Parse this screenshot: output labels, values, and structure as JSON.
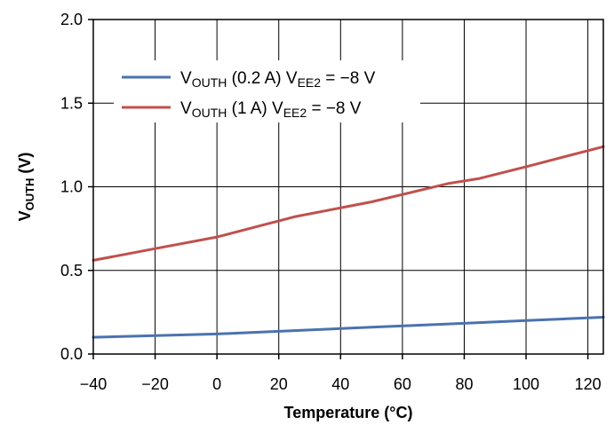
{
  "chart_data": {
    "type": "line",
    "xlabel": "Temperature (°C)",
    "ylabel": {
      "main": "V",
      "sub": "OUTH",
      "unit": " (V)"
    },
    "xlim": [
      -40,
      125
    ],
    "ylim": [
      0,
      2.0
    ],
    "xticks": [
      -40,
      -20,
      0,
      20,
      40,
      60,
      80,
      100,
      120
    ],
    "xtick_labels": [
      "−40",
      "−20",
      "0",
      "20",
      "40",
      "60",
      "80",
      "100",
      "120"
    ],
    "yticks": [
      0,
      0.5,
      1.0,
      1.5,
      2.0
    ],
    "ytick_labels": [
      "0.0",
      "0.5",
      "1.0",
      "1.5",
      "2.0"
    ],
    "grid": true,
    "legend_position": "top-left",
    "series": [
      {
        "name": "VOUTH (0.2 A) VEE2 = −8 V",
        "label_parts": {
          "v1": "V",
          "s1": "OUTH",
          "mid": " (0.2 A) V",
          "s2": "EE2",
          "end": " = −8 V"
        },
        "color": "#4a72b0",
        "x": [
          -40,
          -20,
          0,
          25,
          50,
          75,
          100,
          125
        ],
        "y": [
          0.1,
          0.11,
          0.12,
          0.14,
          0.16,
          0.18,
          0.2,
          0.22
        ]
      },
      {
        "name": "VOUTH (1 A) VEE2 = −8 V",
        "label_parts": {
          "v1": "V",
          "s1": "OUTH",
          "mid": " (1 A) V",
          "s2": "EE2",
          "end": " = −8 V"
        },
        "color": "#c0504d",
        "x": [
          -40,
          -20,
          0,
          25,
          50,
          75,
          85,
          100,
          125
        ],
        "y": [
          0.56,
          0.63,
          0.7,
          0.82,
          0.91,
          1.02,
          1.05,
          1.12,
          1.24
        ]
      }
    ]
  }
}
